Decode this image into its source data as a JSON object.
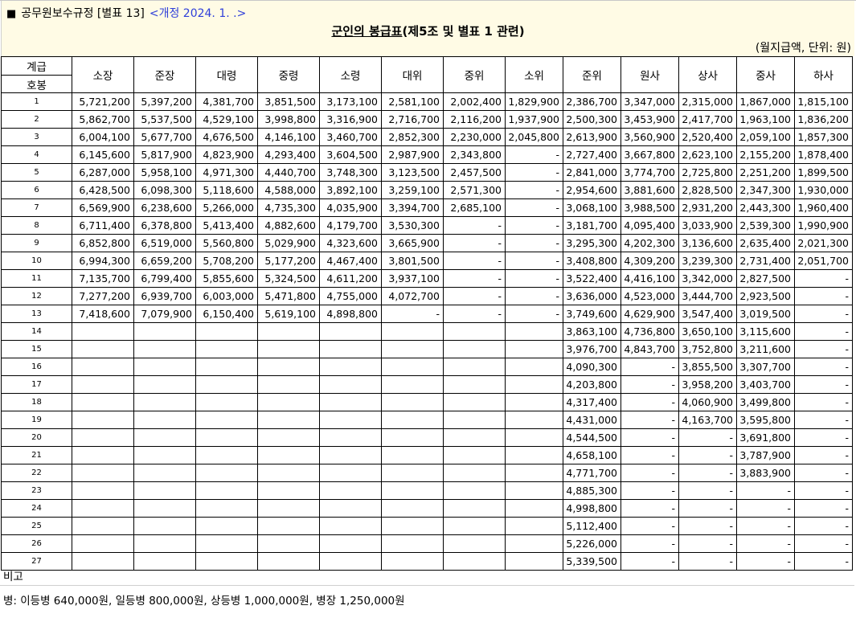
{
  "header": {
    "square": "■",
    "law_name": "공무원보수규정 [별표 13]",
    "amendment": "<개정 2024. 1. .>",
    "title_main": "군인의 봉급표",
    "title_sub": "(제5조 및 별표 1 관련)",
    "unit": "(월지급액, 단위: 원)"
  },
  "table": {
    "grade_header_top": "계급",
    "grade_header_bottom": "호봉",
    "ranks": [
      "소장",
      "준장",
      "대령",
      "중령",
      "소령",
      "대위",
      "중위",
      "소위",
      "준위",
      "원사",
      "상사",
      "중사",
      "하사"
    ],
    "rows": [
      {
        "step": "1",
        "values": [
          "5,721,200",
          "5,397,200",
          "4,381,700",
          "3,851,500",
          "3,173,100",
          "2,581,100",
          "2,002,400",
          "1,829,900",
          "2,386,700",
          "3,347,000",
          "2,315,000",
          "1,867,000",
          "1,815,100"
        ]
      },
      {
        "step": "2",
        "values": [
          "5,862,700",
          "5,537,500",
          "4,529,100",
          "3,998,800",
          "3,316,900",
          "2,716,700",
          "2,116,200",
          "1,937,900",
          "2,500,300",
          "3,453,900",
          "2,417,700",
          "1,963,100",
          "1,836,200"
        ]
      },
      {
        "step": "3",
        "values": [
          "6,004,100",
          "5,677,700",
          "4,676,500",
          "4,146,100",
          "3,460,700",
          "2,852,300",
          "2,230,000",
          "2,045,800",
          "2,613,900",
          "3,560,900",
          "2,520,400",
          "2,059,100",
          "1,857,300"
        ]
      },
      {
        "step": "4",
        "values": [
          "6,145,600",
          "5,817,900",
          "4,823,900",
          "4,293,400",
          "3,604,500",
          "2,987,900",
          "2,343,800",
          "-",
          "2,727,400",
          "3,667,800",
          "2,623,100",
          "2,155,200",
          "1,878,400"
        ]
      },
      {
        "step": "5",
        "values": [
          "6,287,000",
          "5,958,100",
          "4,971,300",
          "4,440,700",
          "3,748,300",
          "3,123,500",
          "2,457,500",
          "-",
          "2,841,000",
          "3,774,700",
          "2,725,800",
          "2,251,200",
          "1,899,500"
        ]
      },
      {
        "step": "6",
        "values": [
          "6,428,500",
          "6,098,300",
          "5,118,600",
          "4,588,000",
          "3,892,100",
          "3,259,100",
          "2,571,300",
          "-",
          "2,954,600",
          "3,881,600",
          "2,828,500",
          "2,347,300",
          "1,930,000"
        ]
      },
      {
        "step": "7",
        "values": [
          "6,569,900",
          "6,238,600",
          "5,266,000",
          "4,735,300",
          "4,035,900",
          "3,394,700",
          "2,685,100",
          "-",
          "3,068,100",
          "3,988,500",
          "2,931,200",
          "2,443,300",
          "1,960,400"
        ]
      },
      {
        "step": "8",
        "values": [
          "6,711,400",
          "6,378,800",
          "5,413,400",
          "4,882,600",
          "4,179,700",
          "3,530,300",
          "-",
          "-",
          "3,181,700",
          "4,095,400",
          "3,033,900",
          "2,539,300",
          "1,990,900"
        ]
      },
      {
        "step": "9",
        "values": [
          "6,852,800",
          "6,519,000",
          "5,560,800",
          "5,029,900",
          "4,323,600",
          "3,665,900",
          "-",
          "-",
          "3,295,300",
          "4,202,300",
          "3,136,600",
          "2,635,400",
          "2,021,300"
        ]
      },
      {
        "step": "10",
        "values": [
          "6,994,300",
          "6,659,200",
          "5,708,200",
          "5,177,200",
          "4,467,400",
          "3,801,500",
          "-",
          "-",
          "3,408,800",
          "4,309,200",
          "3,239,300",
          "2,731,400",
          "2,051,700"
        ]
      },
      {
        "step": "11",
        "values": [
          "7,135,700",
          "6,799,400",
          "5,855,600",
          "5,324,500",
          "4,611,200",
          "3,937,100",
          "-",
          "-",
          "3,522,400",
          "4,416,100",
          "3,342,000",
          "2,827,500",
          "-"
        ]
      },
      {
        "step": "12",
        "values": [
          "7,277,200",
          "6,939,700",
          "6,003,000",
          "5,471,800",
          "4,755,000",
          "4,072,700",
          "-",
          "-",
          "3,636,000",
          "4,523,000",
          "3,444,700",
          "2,923,500",
          "-"
        ]
      },
      {
        "step": "13",
        "values": [
          "7,418,600",
          "7,079,900",
          "6,150,400",
          "5,619,100",
          "4,898,800",
          "-",
          "-",
          "-",
          "3,749,600",
          "4,629,900",
          "3,547,400",
          "3,019,500",
          "-"
        ]
      },
      {
        "step": "14",
        "values": [
          "",
          "",
          "",
          "",
          "",
          "",
          "",
          "",
          "3,863,100",
          "4,736,800",
          "3,650,100",
          "3,115,600",
          "-"
        ]
      },
      {
        "step": "15",
        "values": [
          "",
          "",
          "",
          "",
          "",
          "",
          "",
          "",
          "3,976,700",
          "4,843,700",
          "3,752,800",
          "3,211,600",
          "-"
        ]
      },
      {
        "step": "16",
        "values": [
          "",
          "",
          "",
          "",
          "",
          "",
          "",
          "",
          "4,090,300",
          "-",
          "3,855,500",
          "3,307,700",
          "-"
        ]
      },
      {
        "step": "17",
        "values": [
          "",
          "",
          "",
          "",
          "",
          "",
          "",
          "",
          "4,203,800",
          "-",
          "3,958,200",
          "3,403,700",
          "-"
        ]
      },
      {
        "step": "18",
        "values": [
          "",
          "",
          "",
          "",
          "",
          "",
          "",
          "",
          "4,317,400",
          "-",
          "4,060,900",
          "3,499,800",
          "-"
        ]
      },
      {
        "step": "19",
        "values": [
          "",
          "",
          "",
          "",
          "",
          "",
          "",
          "",
          "4,431,000",
          "-",
          "4,163,700",
          "3,595,800",
          "-"
        ]
      },
      {
        "step": "20",
        "values": [
          "",
          "",
          "",
          "",
          "",
          "",
          "",
          "",
          "4,544,500",
          "-",
          "-",
          "3,691,800",
          "-"
        ]
      },
      {
        "step": "21",
        "values": [
          "",
          "",
          "",
          "",
          "",
          "",
          "",
          "",
          "4,658,100",
          "-",
          "-",
          "3,787,900",
          "-"
        ]
      },
      {
        "step": "22",
        "values": [
          "",
          "",
          "",
          "",
          "",
          "",
          "",
          "",
          "4,771,700",
          "-",
          "-",
          "3,883,900",
          "-"
        ]
      },
      {
        "step": "23",
        "values": [
          "",
          "",
          "",
          "",
          "",
          "",
          "",
          "",
          "4,885,300",
          "-",
          "-",
          "-",
          "-"
        ]
      },
      {
        "step": "24",
        "values": [
          "",
          "",
          "",
          "",
          "",
          "",
          "",
          "",
          "4,998,800",
          "-",
          "-",
          "-",
          "-"
        ]
      },
      {
        "step": "25",
        "values": [
          "",
          "",
          "",
          "",
          "",
          "",
          "",
          "",
          "5,112,400",
          "-",
          "-",
          "-",
          "-"
        ]
      },
      {
        "step": "26",
        "values": [
          "",
          "",
          "",
          "",
          "",
          "",
          "",
          "",
          "5,226,000",
          "-",
          "-",
          "-",
          "-"
        ]
      },
      {
        "step": "27",
        "values": [
          "",
          "",
          "",
          "",
          "",
          "",
          "",
          "",
          "5,339,500",
          "-",
          "-",
          "-",
          "-"
        ]
      }
    ]
  },
  "remarks": {
    "label": "비고",
    "text": "병: 이등병 640,000원, 일등병 800,000원, 상등병 1,000,000원, 병장 1,250,000원"
  },
  "colors": {
    "header_bg": "#fffbe5",
    "amendment_text": "#2f3fd9"
  }
}
